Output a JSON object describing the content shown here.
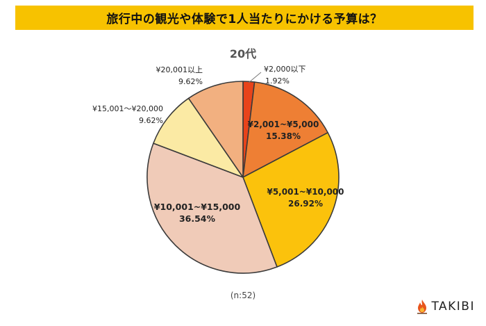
{
  "header": {
    "title": "旅行中の観光や体験で1人当たりにかける予算は？"
  },
  "chart_data": {
    "type": "pie",
    "title": "20代",
    "note": "(n:52)",
    "slices": [
      {
        "label": "¥2,000以下",
        "value": 1.92,
        "value_label": "1.92%",
        "color": "#e8431a"
      },
      {
        "label": "¥2,001~¥5,000",
        "value": 15.38,
        "value_label": "15.38%",
        "color": "#ee7f34"
      },
      {
        "label": "¥5,001~¥10,000",
        "value": 26.92,
        "value_label": "26.92%",
        "color": "#fbc20c"
      },
      {
        "label": "¥10,001~¥15,000",
        "value": 36.54,
        "value_label": "36.54%",
        "color": "#f0cbb8"
      },
      {
        "label": "¥15,001～¥20,000",
        "value": 9.62,
        "value_label": "9.62%",
        "color": "#fbeaa4"
      },
      {
        "label": "¥20,001以上",
        "value": 9.62,
        "value_label": "9.62%",
        "color": "#f2b080"
      }
    ]
  },
  "brand": {
    "name": "TAKIBI",
    "icon": "flame-icon",
    "color": "#e8551c"
  }
}
